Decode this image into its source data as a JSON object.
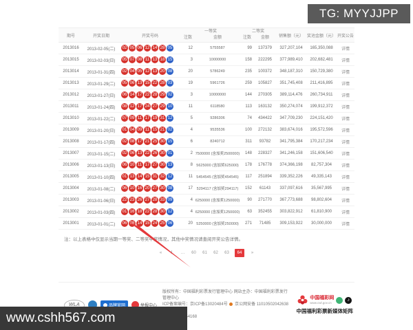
{
  "overlays": {
    "tg_badge": "TG: MYYJJPP",
    "site_badge": "www.cshh567.com"
  },
  "colors": {
    "red_ball": "#d6322c",
    "blue_ball": "#2e62c8",
    "accent_red": "#e4393c",
    "tg_badge_bg": "#5a5a5a",
    "site_badge_bg": "#383838"
  },
  "table": {
    "headers": {
      "issue": "期号",
      "date": "开奖日期",
      "numbers": "开奖号码",
      "first_prize": "一等奖",
      "second_prize": "二等奖",
      "count": "注数",
      "amount": "金额",
      "sales": "销售额（元）",
      "pool": "奖池金额（元）",
      "notice": "开奖公告"
    },
    "rows": [
      {
        "issue": "2013016",
        "date": "2013-02-05(二)",
        "reds": [
          "02",
          "05",
          "06",
          "12",
          "14",
          "28"
        ],
        "blue": "05",
        "first_count": "12",
        "first_amount": "5755587",
        "second_count": "99",
        "second_amount": "137379",
        "sales": "327,207,104",
        "pool": "165,350,088",
        "detail": "详情"
      },
      {
        "issue": "2013015",
        "date": "2013-02-03(日)",
        "reds": [
          "05",
          "07",
          "08",
          "11",
          "13",
          "18"
        ],
        "blue": "15",
        "first_count": "3",
        "first_amount": "10000000",
        "second_count": "158",
        "second_amount": "222295",
        "sales": "377,989,410",
        "pool": "202,682,481",
        "detail": "详情"
      },
      {
        "issue": "2013014",
        "date": "2013-01-31(四)",
        "reds": [
          "02",
          "04",
          "05",
          "12",
          "13",
          "20"
        ],
        "blue": "08",
        "first_count": "20",
        "first_amount": "5786249",
        "second_count": "235",
        "second_amount": "100372",
        "sales": "348,187,310",
        "pool": "150,729,380",
        "detail": "详情"
      },
      {
        "issue": "2013013",
        "date": "2013-01-29(二)",
        "reds": [
          "05",
          "06",
          "13",
          "15",
          "22",
          "28"
        ],
        "blue": "03",
        "first_count": "19",
        "first_amount": "5961726",
        "second_count": "259",
        "second_amount": "105827",
        "sales": "351,745,408",
        "pool": "211,416,895",
        "detail": "详情"
      },
      {
        "issue": "2013012",
        "date": "2013-01-27(日)",
        "reds": [
          "06",
          "14",
          "17",
          "22",
          "28",
          "29"
        ],
        "blue": "02",
        "first_count": "3",
        "first_amount": "10000000",
        "second_count": "144",
        "second_amount": "270305",
        "sales": "389,114,476",
        "pool": "260,734,911",
        "detail": "详情"
      },
      {
        "issue": "2013011",
        "date": "2013-01-24(四)",
        "reds": [
          "08",
          "12",
          "17",
          "24",
          "27",
          "29"
        ],
        "blue": "10",
        "first_count": "11",
        "first_amount": "6118580",
        "second_count": "113",
        "second_amount": "163132",
        "sales": "350,274,074",
        "pool": "199,912,372",
        "detail": "详情"
      },
      {
        "issue": "2013010",
        "date": "2013-01-22(二)",
        "reds": [
          "07",
          "09",
          "11",
          "17",
          "19",
          "31"
        ],
        "blue": "12",
        "first_count": "5",
        "first_amount": "9286306",
        "second_count": "74",
        "second_amount": "434422",
        "sales": "347,709,230",
        "pool": "224,151,420",
        "detail": "详情"
      },
      {
        "issue": "2013009",
        "date": "2013-01-20(日)",
        "reds": [
          "01",
          "04",
          "09",
          "11",
          "15",
          "21"
        ],
        "blue": "02",
        "first_count": "4",
        "first_amount": "9535536",
        "second_count": "100",
        "second_amount": "272132",
        "sales": "383,674,016",
        "pool": "195,572,596",
        "detail": "详情"
      },
      {
        "issue": "2013008",
        "date": "2013-01-17(四)",
        "reds": [
          "02",
          "08",
          "17",
          "21",
          "25",
          "30"
        ],
        "blue": "15",
        "first_count": "6",
        "first_amount": "8240712",
        "second_count": "311",
        "second_amount": "93782",
        "sales": "341,795,384",
        "pool": "170,217,234",
        "detail": "详情"
      },
      {
        "issue": "2013007",
        "date": "2013-01-15(二)",
        "reds": [
          "02",
          "06",
          "13",
          "22",
          "26",
          "30"
        ],
        "blue": "01",
        "first_count": "2",
        "first_amount": "7500000 (含加奖2500000)",
        "second_count": "148",
        "second_amount": "228327",
        "sales": "341,246,158",
        "pool": "151,606,540",
        "detail": "详情"
      },
      {
        "issue": "2013006",
        "date": "2013-01-13(日)",
        "reds": [
          "06",
          "10",
          "11",
          "17",
          "27",
          "30"
        ],
        "blue": "13",
        "first_count": "8",
        "first_amount": "5625000 (含加奖625000)",
        "second_count": "178",
        "second_amount": "176778",
        "sales": "374,366,198",
        "pool": "82,757,304",
        "detail": "详情"
      },
      {
        "issue": "2013005",
        "date": "2013-01-10(四)",
        "reds": [
          "01",
          "13",
          "14",
          "15",
          "31",
          "32"
        ],
        "blue": "12",
        "first_count": "11",
        "first_amount": "5454545 (含加奖454545)",
        "second_count": "117",
        "second_amount": "251894",
        "sales": "339,352,226",
        "pool": "49,335,143",
        "detail": "详情"
      },
      {
        "issue": "2013004",
        "date": "2013-01-08(二)",
        "reds": [
          "06",
          "10",
          "16",
          "20",
          "27",
          "30"
        ],
        "blue": "08",
        "first_count": "17",
        "first_amount": "5294117 (含加奖294117)",
        "second_count": "152",
        "second_amount": "61143",
        "sales": "337,097,616",
        "pool": "35,567,995",
        "detail": "详情"
      },
      {
        "issue": "2013003",
        "date": "2013-01-06(日)",
        "reds": [
          "22",
          "23",
          "26",
          "27",
          "28",
          "33"
        ],
        "blue": "09",
        "first_count": "4",
        "first_amount": "6250000 (含加奖1250000)",
        "second_count": "90",
        "second_amount": "271770",
        "sales": "367,773,688",
        "pool": "98,802,604",
        "detail": "详情"
      },
      {
        "issue": "2013002",
        "date": "2013-01-03(四)",
        "reds": [
          "01",
          "16",
          "18",
          "22",
          "28",
          "30"
        ],
        "blue": "12",
        "first_count": "4",
        "first_amount": "6250000 (含加奖1250000)",
        "second_count": "63",
        "second_amount": "352455",
        "sales": "303,822,912",
        "pool": "61,810,900",
        "detail": "详情"
      },
      {
        "issue": "2013001",
        "date": "2013-01-01(二)",
        "reds": [
          "06",
          "08",
          "14",
          "15",
          "24",
          "25"
        ],
        "blue": "06",
        "first_count": "20",
        "first_amount": "5250000 (含加奖250000)",
        "second_count": "271",
        "second_amount": "71485",
        "sales": "309,153,922",
        "pool": "30,000,000",
        "detail": "详情"
      }
    ]
  },
  "note": "注：以上表格中仅显示当期一等奖、二等奖中奖情况，其他中奖情况请查阅开奖公告详情。",
  "pagination": {
    "items": [
      "«",
      "1",
      "…",
      "60",
      "61",
      "62",
      "63",
      "64",
      "»"
    ],
    "active": "64"
  },
  "footer": {
    "wla": "WLA",
    "brand_badge": "品牌官网",
    "report_badge": "举报中心",
    "copyright": "版权所有：中国福利彩票发行管理中心  网站主办：中国福利彩票发行管理中心",
    "icp": "ICP备案编号：京ICP备13020484号",
    "police": "京公网安备 11010502042638号",
    "hotline": "服务热线：954168",
    "site_name": "中国福彩网",
    "site_url": "www.cwl.gov.cn",
    "matrix": "中国福利彩票新媒体矩阵",
    "douyin_glyph": "♪"
  }
}
